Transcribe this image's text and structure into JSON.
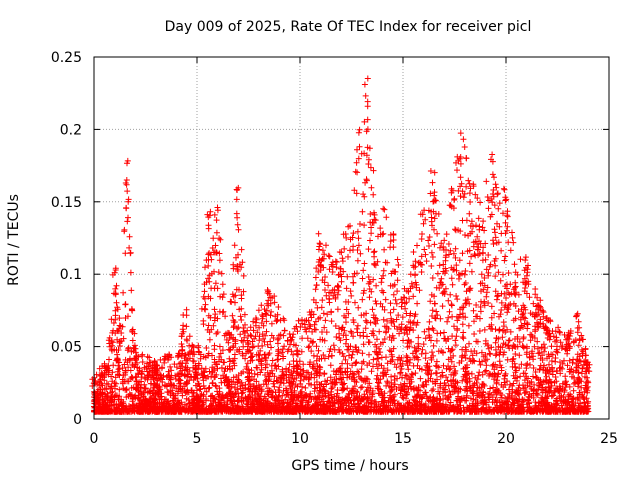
{
  "chart_data": {
    "type": "scatter",
    "title": "Day 009 of 2025, Rate Of TEC Index for receiver picl",
    "xlabel": "GPS time / hours",
    "ylabel": "ROTI / TECUs",
    "xlim": [
      0,
      25
    ],
    "ylim": [
      0,
      0.25
    ],
    "x_ticks": [
      "0",
      "5",
      "10",
      "15",
      "20",
      "25"
    ],
    "y_ticks": [
      "0",
      "0.05",
      "0.1",
      "0.15",
      "0.2",
      "0.25"
    ],
    "grid": true,
    "marker": "+",
    "series_color": "#ff0000",
    "x_range_observed": [
      0,
      24
    ],
    "envelope": [
      {
        "x": 0.0,
        "y": 0.03
      },
      {
        "x": 0.5,
        "y": 0.04
      },
      {
        "x": 0.8,
        "y": 0.06
      },
      {
        "x": 1.0,
        "y": 0.11
      },
      {
        "x": 1.3,
        "y": 0.07
      },
      {
        "x": 1.6,
        "y": 0.18
      },
      {
        "x": 2.0,
        "y": 0.05
      },
      {
        "x": 3.0,
        "y": 0.04
      },
      {
        "x": 4.2,
        "y": 0.05
      },
      {
        "x": 4.4,
        "y": 0.08
      },
      {
        "x": 5.0,
        "y": 0.04
      },
      {
        "x": 5.6,
        "y": 0.145
      },
      {
        "x": 6.0,
        "y": 0.152
      },
      {
        "x": 6.5,
        "y": 0.06
      },
      {
        "x": 7.0,
        "y": 0.16
      },
      {
        "x": 7.5,
        "y": 0.06
      },
      {
        "x": 8.5,
        "y": 0.093
      },
      {
        "x": 9.5,
        "y": 0.06
      },
      {
        "x": 10.5,
        "y": 0.08
      },
      {
        "x": 11.0,
        "y": 0.13
      },
      {
        "x": 11.8,
        "y": 0.11
      },
      {
        "x": 12.5,
        "y": 0.15
      },
      {
        "x": 13.2,
        "y": 0.245
      },
      {
        "x": 13.5,
        "y": 0.18
      },
      {
        "x": 14.0,
        "y": 0.15
      },
      {
        "x": 14.5,
        "y": 0.13
      },
      {
        "x": 15.0,
        "y": 0.09
      },
      {
        "x": 16.0,
        "y": 0.15
      },
      {
        "x": 16.5,
        "y": 0.18
      },
      {
        "x": 17.0,
        "y": 0.13
      },
      {
        "x": 17.8,
        "y": 0.202
      },
      {
        "x": 18.3,
        "y": 0.17
      },
      {
        "x": 18.8,
        "y": 0.15
      },
      {
        "x": 19.4,
        "y": 0.193
      },
      {
        "x": 20.0,
        "y": 0.16
      },
      {
        "x": 20.5,
        "y": 0.11
      },
      {
        "x": 21.0,
        "y": 0.115
      },
      {
        "x": 21.5,
        "y": 0.09
      },
      {
        "x": 22.0,
        "y": 0.07
      },
      {
        "x": 23.0,
        "y": 0.06
      },
      {
        "x": 23.5,
        "y": 0.073
      },
      {
        "x": 24.0,
        "y": 0.04
      }
    ]
  }
}
